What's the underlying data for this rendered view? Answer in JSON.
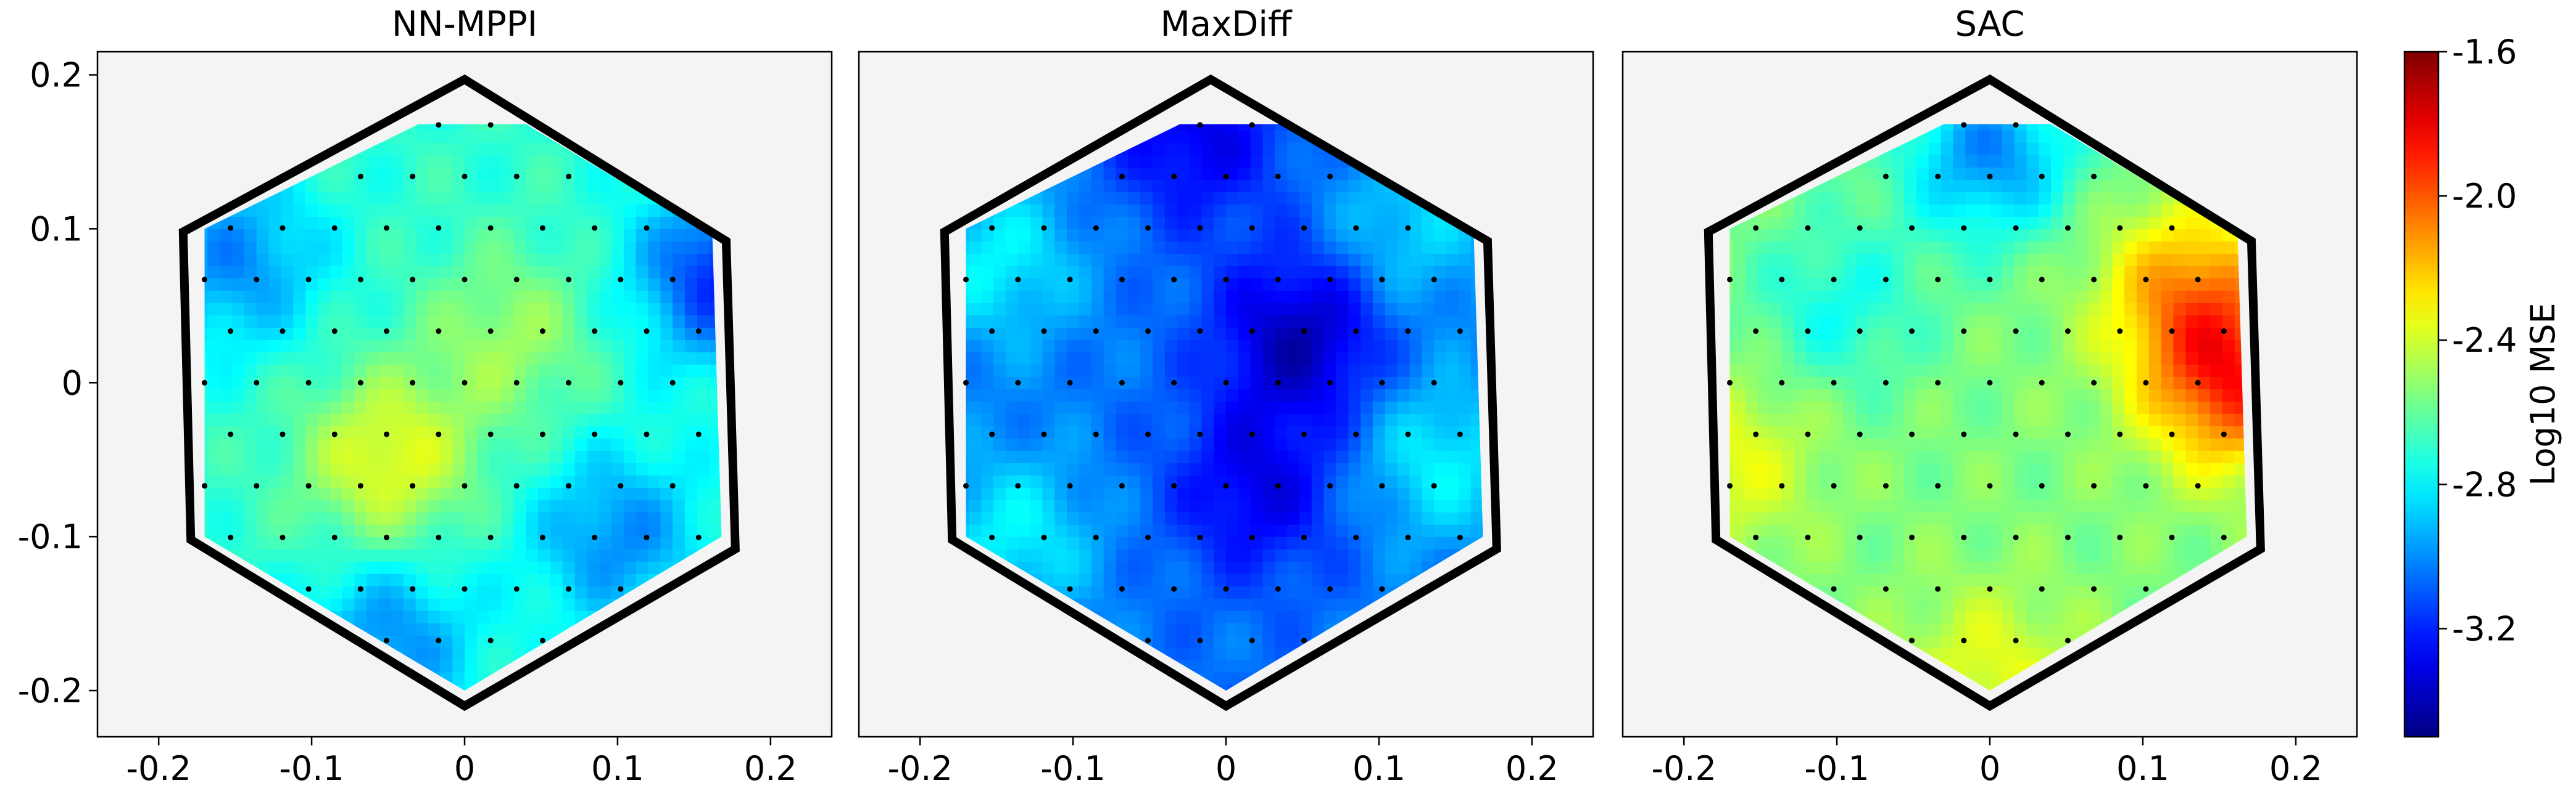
{
  "chart_data": {
    "type": "heatmap",
    "shared_axes": {
      "x_ticks": [
        -0.2,
        -0.1,
        0,
        0.1,
        0.2
      ],
      "x_tick_labels": [
        "-0.2",
        "-0.1",
        "0",
        "0.1",
        "0.2"
      ],
      "y_ticks": [
        0.2,
        0.1,
        0,
        -0.1,
        -0.2
      ],
      "y_tick_labels": [
        "0.2",
        "0.1",
        "0",
        "-0.1",
        "-0.2"
      ],
      "xlim": [
        -0.24,
        0.24
      ],
      "ylim": [
        -0.23,
        0.215
      ],
      "grid": false
    },
    "colorbar": {
      "label": "Log10 MSE",
      "colormap": "jet",
      "range": [
        -3.5,
        -1.6
      ],
      "ticks": [
        -1.6,
        -2.0,
        -2.4,
        -2.8,
        -3.2
      ],
      "tick_labels": [
        "-1.6",
        "-2.0",
        "-2.4",
        "-2.8",
        "-3.2"
      ]
    },
    "panels": [
      {
        "title": "NN-MPPI",
        "hexagon_vertices": [
          [
            0.0,
            0.197
          ],
          [
            0.171,
            0.092
          ],
          [
            0.177,
            -0.108
          ],
          [
            0.0,
            -0.21
          ],
          [
            -0.179,
            -0.102
          ],
          [
            -0.184,
            0.098
          ]
        ],
        "field_description": "mostly cyan-green around -2.7, yellow hotspot near (-0.05,-0.05), blue patches left and lower right",
        "hotspots": [
          {
            "x": -0.05,
            "y": -0.05,
            "value": -2.35
          },
          {
            "x": 0.03,
            "y": 0.03,
            "value": -2.5
          },
          {
            "x": -0.15,
            "y": 0.08,
            "value": -3.0
          },
          {
            "x": 0.1,
            "y": -0.1,
            "value": -3.0
          },
          {
            "x": 0.17,
            "y": 0.07,
            "value": -3.2
          },
          {
            "x": -0.05,
            "y": -0.17,
            "value": -3.0
          }
        ],
        "base_value": -2.7
      },
      {
        "title": "MaxDiff",
        "hexagon_vertices": [
          [
            -0.01,
            0.197
          ],
          [
            0.171,
            0.092
          ],
          [
            0.177,
            -0.108
          ],
          [
            0.0,
            -0.21
          ],
          [
            -0.179,
            -0.102
          ],
          [
            -0.184,
            0.098
          ]
        ],
        "field_description": "predominantly blue around -3.0, deep blue center near (0.05,0.03)",
        "hotspots": [
          {
            "x": 0.05,
            "y": 0.03,
            "value": -3.4
          },
          {
            "x": -0.02,
            "y": 0.16,
            "value": -3.3
          },
          {
            "x": 0.02,
            "y": -0.07,
            "value": -3.3
          },
          {
            "x": -0.15,
            "y": 0.08,
            "value": -2.8
          },
          {
            "x": -0.14,
            "y": -0.1,
            "value": -2.8
          },
          {
            "x": 0.14,
            "y": -0.05,
            "value": -2.8
          },
          {
            "x": 0.12,
            "y": 0.1,
            "value": -2.85
          }
        ],
        "base_value": -3.05
      },
      {
        "title": "SAC",
        "hexagon_vertices": [
          [
            0.0,
            0.197
          ],
          [
            0.171,
            0.092
          ],
          [
            0.177,
            -0.108
          ],
          [
            0.0,
            -0.21
          ],
          [
            -0.179,
            -0.102
          ],
          [
            -0.184,
            0.098
          ]
        ],
        "field_description": "green-yellow around -2.5, orange-red hotspot near (0.16,0.0), blue patch at top",
        "hotspots": [
          {
            "x": 0.16,
            "y": 0.0,
            "value": -1.95
          },
          {
            "x": 0.13,
            "y": 0.06,
            "value": -2.15
          },
          {
            "x": 0.0,
            "y": 0.15,
            "value": -3.0
          },
          {
            "x": -0.17,
            "y": -0.05,
            "value": -2.35
          },
          {
            "x": 0.0,
            "y": -0.19,
            "value": -2.35
          },
          {
            "x": -0.1,
            "y": 0.05,
            "value": -2.75
          }
        ],
        "base_value": -2.55
      }
    ]
  }
}
